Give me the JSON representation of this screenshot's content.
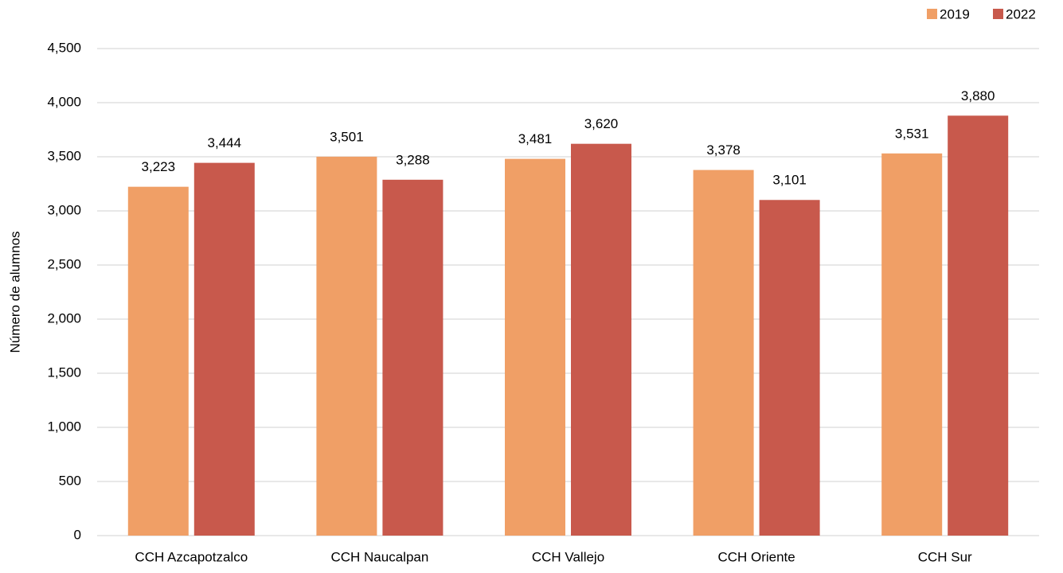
{
  "chart_data": {
    "type": "bar",
    "y_label": "Número de alumnos",
    "categories": [
      "CCH Azcapotzalco",
      "CCH Naucalpan",
      "CCH Vallejo",
      "CCH Oriente",
      "CCH Sur"
    ],
    "series": [
      {
        "name": "2019",
        "color": "#f09f66",
        "values": [
          3223,
          3501,
          3481,
          3378,
          3531
        ],
        "value_labels": [
          "3,223",
          "3,501",
          "3,481",
          "3,378",
          "3,531"
        ]
      },
      {
        "name": "2022",
        "color": "#c8594c",
        "values": [
          3444,
          3288,
          3620,
          3101,
          3880
        ],
        "value_labels": [
          "3,444",
          "3,288",
          "3,620",
          "3,101",
          "3,880"
        ]
      }
    ],
    "ylim": [
      0,
      4500
    ],
    "yticks": [
      0,
      500,
      {
        "value": 1000,
        "label": "1,000"
      },
      {
        "value": 1500,
        "label": "1,500"
      },
      {
        "value": 2000,
        "label": "2,000"
      },
      {
        "value": 2500,
        "label": "2,500"
      },
      {
        "value": 3000,
        "label": "3,000"
      },
      {
        "value": 3500,
        "label": "3,500"
      },
      {
        "value": 4000,
        "label": "4,000"
      },
      {
        "value": 4500,
        "label": "4,500"
      }
    ],
    "grid": true,
    "legend": "top-right"
  }
}
